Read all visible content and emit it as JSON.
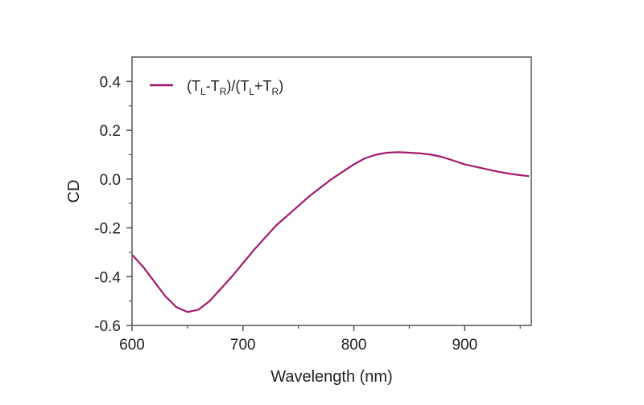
{
  "chart_data": {
    "type": "line",
    "title": "",
    "xlabel": "Wavelength (nm)",
    "ylabel": "CD",
    "xlim": [
      600,
      960
    ],
    "ylim": [
      -0.6,
      0.5
    ],
    "xticks": [
      600,
      700,
      800,
      900
    ],
    "xtick_labels": [
      "600",
      "700",
      "800",
      "900"
    ],
    "yticks": [
      -0.6,
      -0.4,
      -0.2,
      0.0,
      0.2,
      0.4
    ],
    "ytick_labels": [
      "-0.6",
      "-0.4",
      "-0.2",
      "0.0",
      "0.2",
      "0.4"
    ],
    "grid": false,
    "legend_position": "top-left",
    "series": [
      {
        "name": "(T_L-T_R)/(T_L+T_R)",
        "legend": {
          "p1": "(T",
          "s1": "L",
          "p2": "-T",
          "s2": "R",
          "p3": ")/(T",
          "s3": "L",
          "p4": "+T",
          "s4": "R",
          "p5": ")"
        },
        "color": "#a3196b",
        "x": [
          600,
          610,
          620,
          630,
          640,
          650,
          660,
          670,
          680,
          690,
          700,
          710,
          720,
          730,
          740,
          750,
          760,
          770,
          780,
          790,
          800,
          810,
          820,
          830,
          840,
          850,
          860,
          870,
          880,
          890,
          900,
          910,
          920,
          930,
          940,
          950,
          958
        ],
        "y": [
          -0.31,
          -0.36,
          -0.42,
          -0.48,
          -0.525,
          -0.545,
          -0.535,
          -0.5,
          -0.45,
          -0.4,
          -0.345,
          -0.29,
          -0.24,
          -0.19,
          -0.15,
          -0.11,
          -0.07,
          -0.035,
          0.0,
          0.03,
          0.06,
          0.085,
          0.1,
          0.108,
          0.11,
          0.108,
          0.105,
          0.1,
          0.09,
          0.075,
          0.06,
          0.05,
          0.04,
          0.03,
          0.022,
          0.016,
          0.012
        ]
      }
    ]
  }
}
